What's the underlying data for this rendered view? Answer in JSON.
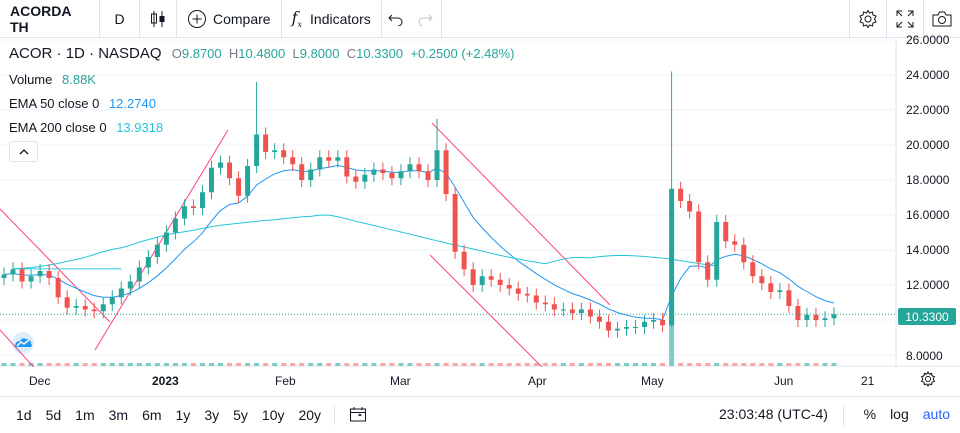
{
  "toolbar": {
    "symbol": "ACORDA TH",
    "interval": "D",
    "compare_label": "Compare",
    "indicators_label": "Indicators"
  },
  "legend": {
    "symbol": "ACOR",
    "interval": "1D",
    "exchange": "NASDAQ",
    "open_label": "O",
    "open": "9.8700",
    "high_label": "H",
    "high": "10.4800",
    "low_label": "L",
    "low": "9.8000",
    "close_label": "C",
    "close": "10.3300",
    "change": "+0.2500 (+2.48%)",
    "volume_label": "Volume",
    "volume": "8.88K",
    "ema50_label": "EMA 50 close 0",
    "ema50": "12.2740",
    "ema200_label": "EMA 200 close 0",
    "ema200": "13.9318"
  },
  "colors": {
    "up": "#26a69a",
    "down": "#ef5350",
    "ema50": "#2196f3",
    "ema200": "#26c6da",
    "trendline": "#ff4081",
    "accent": "#2962ff"
  },
  "price_axis": {
    "ticks": [
      "26.0000",
      "24.0000",
      "22.0000",
      "20.0000",
      "18.0000",
      "16.0000",
      "14.0000",
      "12.0000",
      "8.0000"
    ],
    "last_price": "10.3300"
  },
  "time_axis": {
    "ticks": [
      "Dec",
      "2023",
      "Feb",
      "Mar",
      "Apr",
      "May",
      "Jun",
      "21"
    ]
  },
  "ranges": [
    "1d",
    "5d",
    "1m",
    "3m",
    "6m",
    "1y",
    "3y",
    "5y",
    "10y",
    "20y"
  ],
  "bottom": {
    "clock": "23:03:48 (UTC-4)",
    "percent": "%",
    "log": "log",
    "auto": "auto"
  },
  "chart_data": {
    "type": "candlestick",
    "close_series": [
      12.6,
      12.9,
      12.2,
      12.5,
      12.8,
      12.4,
      11.3,
      10.7,
      10.8,
      10.6,
      10.5,
      10.9,
      11.3,
      11.8,
      12.2,
      13.0,
      13.6,
      14.3,
      15.0,
      15.8,
      16.5,
      16.4,
      17.3,
      18.7,
      19.0,
      18.1,
      17.1,
      18.8,
      20.6,
      19.6,
      19.7,
      19.3,
      18.9,
      18.0,
      18.6,
      19.3,
      19.1,
      19.3,
      18.2,
      17.9,
      18.3,
      18.6,
      18.4,
      18.1,
      18.5,
      18.9,
      18.5,
      18.0,
      19.7,
      17.2,
      13.9,
      12.9,
      12.0,
      12.5,
      12.3,
      12.0,
      11.8,
      11.5,
      11.4,
      11.0,
      10.9,
      10.6,
      10.6,
      10.4,
      10.6,
      10.2,
      9.9,
      9.4,
      9.5,
      9.6,
      9.6,
      9.9,
      10.0,
      9.7,
      17.5,
      16.8,
      16.2,
      13.3,
      12.3,
      15.6,
      14.5,
      14.3,
      13.3,
      12.5,
      12.1,
      11.6,
      11.7,
      10.8,
      10.0,
      10.3,
      10.0,
      10.1,
      10.33
    ],
    "ema50": [],
    "ema200": []
  }
}
